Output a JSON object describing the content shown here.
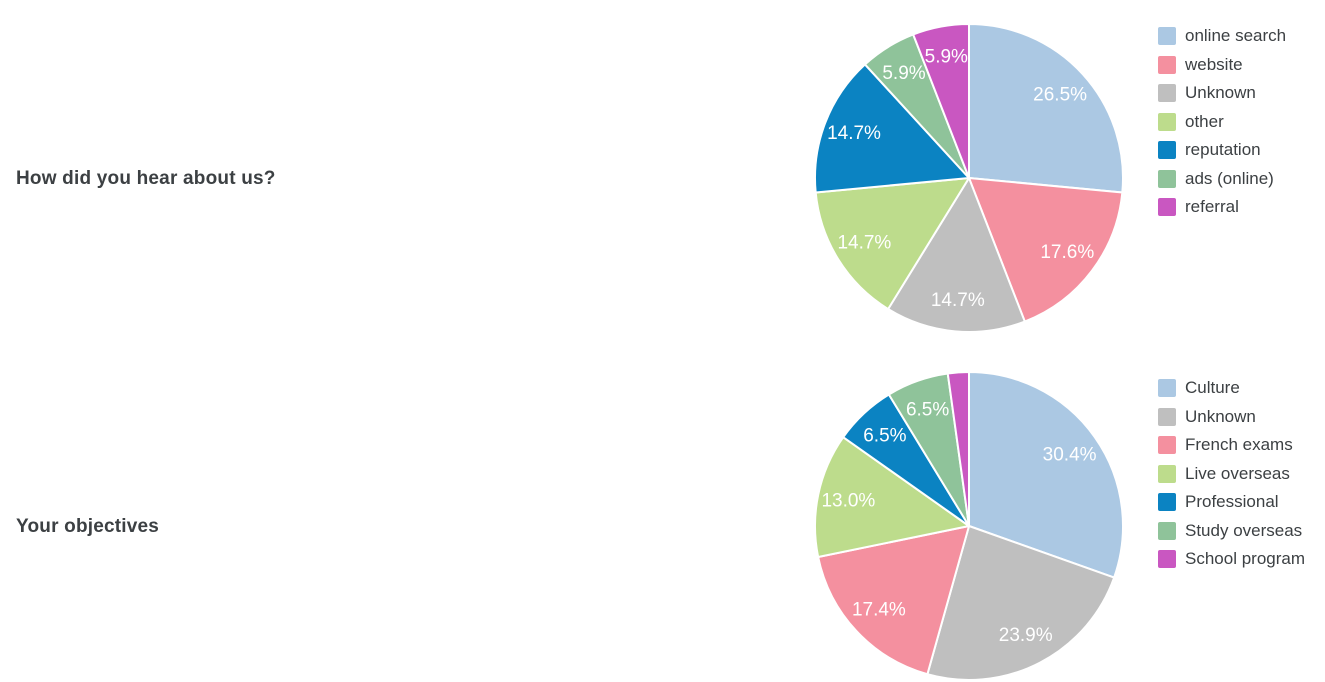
{
  "styles": {
    "background": "#ffffff",
    "text_color": "#3c4043",
    "slice_label_color": "#ffffff",
    "slice_border_color": "#ffffff"
  },
  "chart_data": [
    {
      "type": "pie",
      "title": "How did you hear about us?",
      "categories": [
        "online search",
        "website",
        "Unknown",
        "other",
        "reputation",
        "ads (online)",
        "referral"
      ],
      "values": [
        26.5,
        17.6,
        14.7,
        14.7,
        14.7,
        5.9,
        5.9
      ],
      "percent_labels": [
        "26.5%",
        "17.6%",
        "14.7%",
        "14.7%",
        "14.7%",
        "5.9%",
        "5.9%"
      ],
      "colors": [
        "#abc8e3",
        "#f4909f",
        "#bfbfbf",
        "#bddc8c",
        "#0b83c2",
        "#8fc39a",
        "#c957c1"
      ],
      "start_angle": 0,
      "direction": "clockwise",
      "legend_position": "right",
      "label_radius_ratio": 0.8,
      "min_label_percent": 3
    },
    {
      "type": "pie",
      "title": "Your objectives",
      "categories": [
        "Culture",
        "Unknown",
        "French exams",
        "Live overseas",
        "Professional",
        "Study overseas",
        "School program"
      ],
      "values": [
        30.4,
        23.9,
        17.4,
        13.0,
        6.5,
        6.5,
        2.2
      ],
      "percent_labels": [
        "30.4%",
        "23.9%",
        "17.4%",
        "13.0%",
        "6.5%",
        "6.5%",
        "2.2%"
      ],
      "colors": [
        "#abc8e3",
        "#bfbfbf",
        "#f4909f",
        "#bddc8c",
        "#0b83c2",
        "#8fc39a",
        "#c957c1"
      ],
      "start_angle": 0,
      "direction": "clockwise",
      "legend_position": "right",
      "label_radius_ratio": 0.8,
      "min_label_percent": 3
    }
  ]
}
